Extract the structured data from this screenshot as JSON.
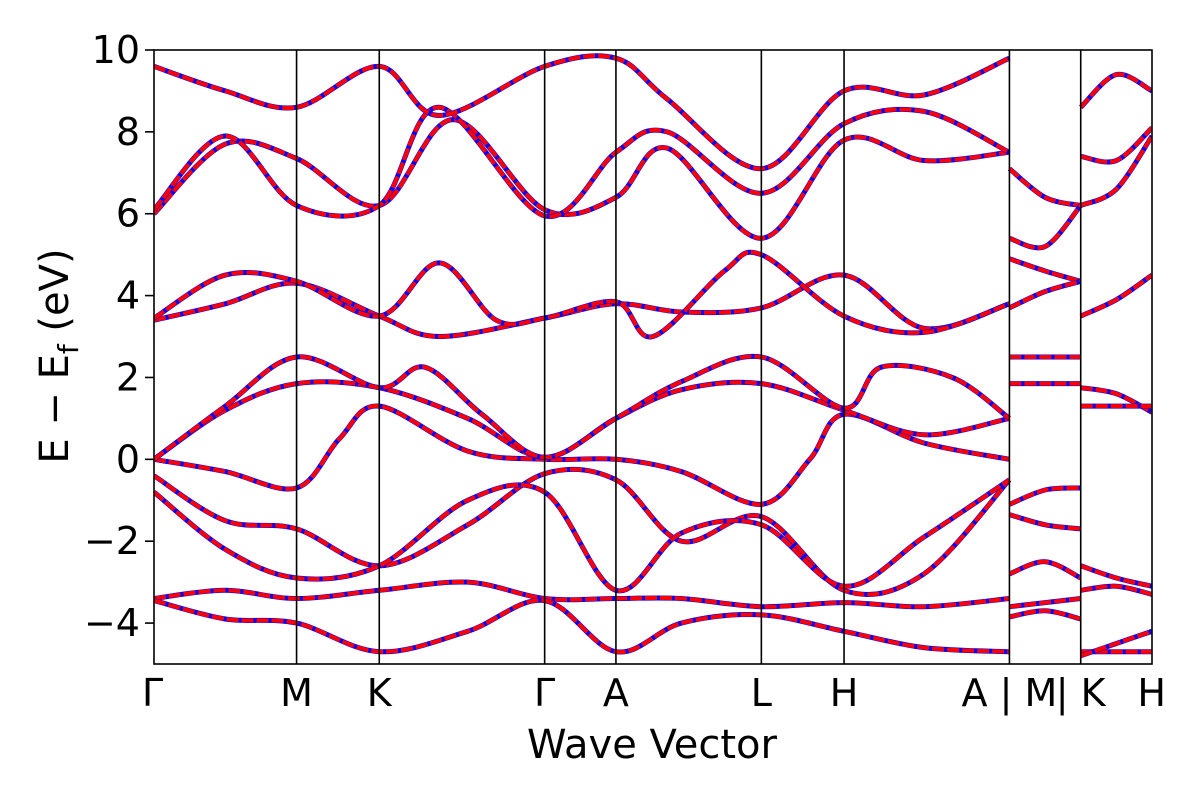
{
  "chart_data": {
    "type": "line",
    "xlabel": "Wave Vector",
    "ylabel_main": "E − E",
    "ylabel_sub": "f",
    "ylabel_unit": " (eV)",
    "ylim": [
      -5,
      10
    ],
    "yticks": [
      {
        "value": -4,
        "label": "−4"
      },
      {
        "value": -2,
        "label": "−2"
      },
      {
        "value": 0,
        "label": "0"
      },
      {
        "value": 2,
        "label": "2"
      },
      {
        "value": 4,
        "label": "4"
      },
      {
        "value": 6,
        "label": "6"
      },
      {
        "value": 8,
        "label": "8"
      },
      {
        "value": 10,
        "label": "10"
      }
    ],
    "xlim": [
      0,
      7.0
    ],
    "kpoints": [
      {
        "pos": 0.0,
        "label": "Γ"
      },
      {
        "pos": 1.0,
        "label": "M"
      },
      {
        "pos": 1.58,
        "label": "K"
      },
      {
        "pos": 2.74,
        "label": "Γ"
      },
      {
        "pos": 3.24,
        "label": "A"
      },
      {
        "pos": 4.26,
        "label": "L"
      },
      {
        "pos": 4.84,
        "label": "H"
      },
      {
        "pos": 6.0,
        "label": "A | M"
      },
      {
        "pos": 6.5,
        "label": "| K"
      },
      {
        "pos": 7.0,
        "label": "H"
      }
    ],
    "segment_breaks": [
      6.0,
      6.5
    ],
    "series_colors": {
      "a": "#0000ff",
      "b": "#ff0000"
    },
    "bands": [
      [
        [
          0,
          -0.4
        ],
        [
          0.5,
          -1.5
        ],
        [
          1.0,
          -1.7
        ],
        [
          1.58,
          -2.6
        ],
        [
          2.2,
          -1.6
        ],
        [
          2.74,
          -0.35
        ],
        [
          3.24,
          -0.5
        ],
        [
          3.7,
          -2.0
        ],
        [
          4.26,
          -1.4
        ],
        [
          4.84,
          -3.2
        ],
        [
          5.4,
          -2.8
        ],
        [
          6.0,
          -0.5
        ]
      ],
      [
        [
          0,
          -0.8
        ],
        [
          0.5,
          -2.2
        ],
        [
          1.0,
          -2.9
        ],
        [
          1.58,
          -2.6
        ],
        [
          2.2,
          -1.0
        ],
        [
          2.74,
          -0.8
        ],
        [
          3.24,
          -3.2
        ],
        [
          3.7,
          -1.8
        ],
        [
          4.26,
          -1.6
        ],
        [
          4.84,
          -3.1
        ],
        [
          5.4,
          -1.9
        ],
        [
          6.0,
          -0.5
        ]
      ],
      [
        [
          0,
          0.0
        ],
        [
          0.5,
          -0.3
        ],
        [
          1.0,
          -0.7
        ],
        [
          1.3,
          0.5
        ],
        [
          1.58,
          1.3
        ],
        [
          2.2,
          0.2
        ],
        [
          2.74,
          0.0
        ],
        [
          3.24,
          0.0
        ],
        [
          3.7,
          -0.3
        ],
        [
          4.26,
          -1.1
        ],
        [
          4.6,
          0.0
        ],
        [
          4.84,
          1.1
        ],
        [
          5.4,
          0.4
        ],
        [
          6.0,
          0.0
        ]
      ],
      [
        [
          0,
          0.0
        ],
        [
          0.5,
          1.2
        ],
        [
          1.0,
          1.85
        ],
        [
          1.58,
          1.75
        ],
        [
          2.2,
          1.0
        ],
        [
          2.74,
          0.05
        ],
        [
          3.24,
          1.0
        ],
        [
          3.7,
          1.7
        ],
        [
          4.26,
          1.85
        ],
        [
          4.84,
          1.2
        ],
        [
          5.4,
          0.6
        ],
        [
          6.0,
          1.0
        ]
      ],
      [
        [
          0,
          0.0
        ],
        [
          0.5,
          1.3
        ],
        [
          1.0,
          2.5
        ],
        [
          1.58,
          1.75
        ],
        [
          1.9,
          2.25
        ],
        [
          2.3,
          1.1
        ],
        [
          2.74,
          0.05
        ],
        [
          3.24,
          1.0
        ],
        [
          3.7,
          1.9
        ],
        [
          4.26,
          2.5
        ],
        [
          4.84,
          1.25
        ],
        [
          5.1,
          2.25
        ],
        [
          5.6,
          2.0
        ],
        [
          6.0,
          1.0
        ]
      ],
      [
        [
          0,
          3.4
        ],
        [
          0.5,
          3.8
        ],
        [
          1.0,
          4.3
        ],
        [
          1.58,
          3.5
        ],
        [
          2.0,
          3.0
        ],
        [
          2.74,
          3.45
        ],
        [
          3.24,
          3.8
        ],
        [
          3.7,
          3.6
        ],
        [
          4.26,
          3.7
        ],
        [
          4.84,
          4.5
        ],
        [
          5.4,
          3.2
        ],
        [
          6.0,
          3.8
        ]
      ],
      [
        [
          0,
          3.45
        ],
        [
          0.5,
          4.5
        ],
        [
          1.0,
          4.35
        ],
        [
          1.58,
          3.5
        ],
        [
          2.0,
          4.8
        ],
        [
          2.4,
          3.4
        ],
        [
          2.74,
          3.45
        ],
        [
          3.24,
          3.85
        ],
        [
          3.5,
          3.0
        ],
        [
          4.0,
          4.6
        ],
        [
          4.26,
          5.0
        ],
        [
          4.84,
          3.5
        ],
        [
          5.4,
          3.1
        ],
        [
          6.0,
          3.8
        ]
      ],
      [
        [
          0,
          6.0
        ],
        [
          0.5,
          7.7
        ],
        [
          1.0,
          7.35
        ],
        [
          1.58,
          6.2
        ],
        [
          2.1,
          8.3
        ],
        [
          2.74,
          6.1
        ],
        [
          3.24,
          6.4
        ],
        [
          3.6,
          7.6
        ],
        [
          4.26,
          5.4
        ],
        [
          4.84,
          7.8
        ],
        [
          5.4,
          7.3
        ],
        [
          6.0,
          7.5
        ]
      ],
      [
        [
          0,
          6.1
        ],
        [
          0.5,
          7.9
        ],
        [
          1.0,
          6.2
        ],
        [
          1.58,
          6.2
        ],
        [
          2.0,
          8.6
        ],
        [
          2.74,
          5.95
        ],
        [
          3.24,
          7.5
        ],
        [
          3.6,
          8.0
        ],
        [
          4.26,
          6.5
        ],
        [
          4.84,
          8.2
        ],
        [
          5.4,
          8.5
        ],
        [
          6.0,
          7.5
        ]
      ],
      [
        [
          0,
          9.6
        ],
        [
          0.5,
          9.0
        ],
        [
          1.0,
          8.6
        ],
        [
          1.58,
          9.6
        ],
        [
          2.0,
          8.4
        ],
        [
          2.74,
          9.6
        ],
        [
          3.24,
          9.8
        ],
        [
          3.6,
          8.8
        ],
        [
          4.26,
          7.1
        ],
        [
          4.84,
          9.0
        ],
        [
          5.4,
          8.9
        ],
        [
          6.0,
          9.8
        ]
      ],
      [
        [
          0,
          -3.4
        ],
        [
          0.5,
          -3.2
        ],
        [
          1.0,
          -3.4
        ],
        [
          1.58,
          -3.2
        ],
        [
          2.2,
          -3.0
        ],
        [
          2.74,
          -3.4
        ],
        [
          3.24,
          -3.4
        ],
        [
          3.7,
          -3.4
        ],
        [
          4.26,
          -3.6
        ],
        [
          4.84,
          -3.5
        ],
        [
          5.4,
          -3.6
        ],
        [
          6.0,
          -3.4
        ]
      ],
      [
        [
          0,
          -3.45
        ],
        [
          0.5,
          -3.9
        ],
        [
          1.0,
          -4.0
        ],
        [
          1.58,
          -4.7
        ],
        [
          2.2,
          -4.2
        ],
        [
          2.74,
          -3.45
        ],
        [
          3.24,
          -4.7
        ],
        [
          3.7,
          -4.0
        ],
        [
          4.26,
          -3.8
        ],
        [
          4.84,
          -4.2
        ],
        [
          5.4,
          -4.6
        ],
        [
          6.0,
          -4.7
        ]
      ],
      [
        [
          6.0,
          7.1
        ],
        [
          6.25,
          6.4
        ],
        [
          6.5,
          6.2
        ]
      ],
      [
        [
          6.0,
          5.4
        ],
        [
          6.25,
          5.2
        ],
        [
          6.5,
          6.2
        ]
      ],
      [
        [
          6.0,
          4.9
        ],
        [
          6.25,
          4.6
        ],
        [
          6.5,
          4.35
        ]
      ],
      [
        [
          6.0,
          3.7
        ],
        [
          6.25,
          4.1
        ],
        [
          6.5,
          4.35
        ]
      ],
      [
        [
          6.0,
          2.5
        ],
        [
          6.5,
          2.5
        ]
      ],
      [
        [
          6.0,
          1.85
        ],
        [
          6.5,
          1.85
        ]
      ],
      [
        [
          6.0,
          -1.1
        ],
        [
          6.25,
          -0.75
        ],
        [
          6.5,
          -0.7
        ]
      ],
      [
        [
          6.0,
          -1.35
        ],
        [
          6.25,
          -1.6
        ],
        [
          6.5,
          -1.7
        ]
      ],
      [
        [
          6.0,
          -2.8
        ],
        [
          6.25,
          -2.5
        ],
        [
          6.5,
          -2.9
        ]
      ],
      [
        [
          6.0,
          -3.6
        ],
        [
          6.25,
          -3.5
        ],
        [
          6.5,
          -3.4
        ]
      ],
      [
        [
          6.0,
          -3.85
        ],
        [
          6.25,
          -3.7
        ],
        [
          6.5,
          -3.9
        ]
      ],
      [
        [
          6.5,
          8.6
        ],
        [
          6.75,
          9.4
        ],
        [
          7.0,
          9.0
        ]
      ],
      [
        [
          6.5,
          7.4
        ],
        [
          6.75,
          7.3
        ],
        [
          7.0,
          8.1
        ]
      ],
      [
        [
          6.5,
          6.2
        ],
        [
          6.75,
          6.6
        ],
        [
          7.0,
          7.9
        ]
      ],
      [
        [
          6.5,
          3.5
        ],
        [
          6.75,
          3.9
        ],
        [
          7.0,
          4.5
        ]
      ],
      [
        [
          6.5,
          1.75
        ],
        [
          6.75,
          1.6
        ],
        [
          7.0,
          1.15
        ]
      ],
      [
        [
          6.5,
          1.3
        ],
        [
          6.75,
          1.3
        ],
        [
          7.0,
          1.3
        ]
      ],
      [
        [
          6.5,
          -2.6
        ],
        [
          6.75,
          -2.9
        ],
        [
          7.0,
          -3.1
        ]
      ],
      [
        [
          6.5,
          -3.2
        ],
        [
          6.75,
          -3.1
        ],
        [
          7.0,
          -3.3
        ]
      ],
      [
        [
          6.5,
          -4.7
        ],
        [
          6.75,
          -4.7
        ],
        [
          7.0,
          -4.7
        ]
      ],
      [
        [
          6.5,
          -4.8
        ],
        [
          6.75,
          -4.5
        ],
        [
          7.0,
          -4.2
        ]
      ]
    ]
  }
}
